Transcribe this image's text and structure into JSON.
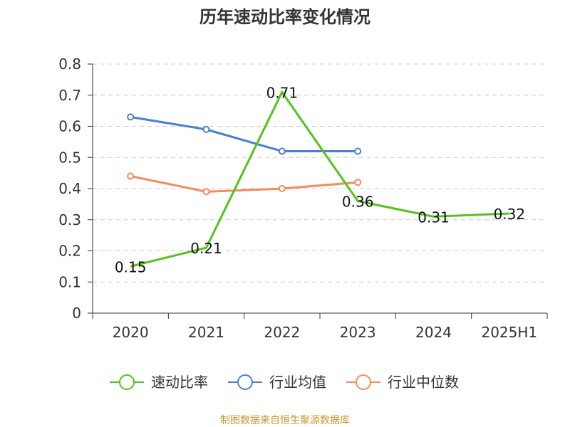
{
  "chart_data": {
    "type": "line",
    "title": "历年速动比率变化情况",
    "categories": [
      "2020",
      "2021",
      "2022",
      "2023",
      "2024",
      "2025H1"
    ],
    "y_ticks": [
      "0",
      "0.1",
      "0.2",
      "0.3",
      "0.4",
      "0.5",
      "0.6",
      "0.7",
      "0.8"
    ],
    "ylim": [
      0,
      0.8
    ],
    "grid": true,
    "legend_position": "bottom",
    "series": [
      {
        "name": "速动比率",
        "color": "#52c41a",
        "values": [
          0.15,
          0.21,
          0.71,
          0.36,
          0.31,
          0.32
        ],
        "labels": [
          "0.15",
          "0.21",
          "0.71",
          "0.36",
          "0.31",
          "0.32"
        ],
        "show_labels": true
      },
      {
        "name": "行业均值",
        "color": "#4a7fd6",
        "values": [
          0.63,
          0.59,
          0.52,
          0.52,
          null,
          null
        ],
        "show_labels": false
      },
      {
        "name": "行业中位数",
        "color": "#f88a5a",
        "values": [
          0.44,
          0.39,
          0.4,
          0.42,
          null,
          null
        ],
        "show_labels": false
      }
    ],
    "source": "制图数据来自恒生聚源数据库",
    "source_color": "#c8962e"
  }
}
